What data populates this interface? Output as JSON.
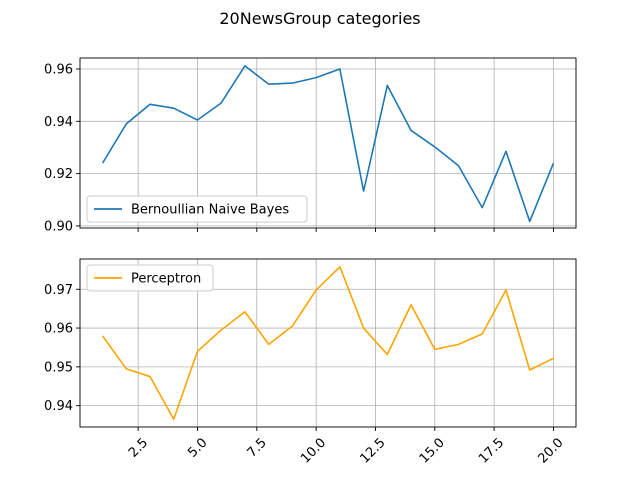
{
  "figure": {
    "title": "20NewsGroup categories"
  },
  "chart_data": [
    {
      "type": "line",
      "x": [
        1,
        2,
        3,
        4,
        5,
        6,
        7,
        8,
        9,
        10,
        11,
        12,
        13,
        14,
        15,
        16,
        17,
        18,
        19,
        20
      ],
      "series": [
        {
          "name": "Bernoullian Naive Bayes",
          "color": "#1f77b4",
          "values": [
            0.924,
            0.939,
            0.9465,
            0.945,
            0.9405,
            0.947,
            0.9612,
            0.9542,
            0.9546,
            0.9567,
            0.96,
            0.9133,
            0.9537,
            0.9365,
            0.9302,
            0.923,
            0.907,
            0.9285,
            0.9017,
            0.924
          ]
        }
      ],
      "xlim": [
        0.05,
        20.95
      ],
      "ylim": [
        0.8992,
        0.9642
      ],
      "yticks": [
        0.9,
        0.92,
        0.94,
        0.96
      ],
      "ytick_labels": [
        "0.90",
        "0.92",
        "0.94",
        "0.96"
      ],
      "xticks": [
        2.5,
        5.0,
        7.5,
        10.0,
        12.5,
        15.0,
        17.5,
        20.0
      ],
      "xtick_labels": [
        "",
        "",
        "",
        "",
        "",
        "",
        "",
        ""
      ],
      "grid": true,
      "legend_position": "lower-left"
    },
    {
      "type": "line",
      "x": [
        1,
        2,
        3,
        4,
        5,
        6,
        7,
        8,
        9,
        10,
        11,
        12,
        13,
        14,
        15,
        16,
        17,
        18,
        19,
        20
      ],
      "series": [
        {
          "name": "Perceptron",
          "color": "#ffa500",
          "values": [
            0.958,
            0.9495,
            0.9475,
            0.9365,
            0.954,
            0.9595,
            0.9642,
            0.9558,
            0.9605,
            0.9698,
            0.9758,
            0.96,
            0.9532,
            0.966,
            0.9545,
            0.9558,
            0.9585,
            0.9698,
            0.9492,
            0.9522
          ]
        }
      ],
      "xlim": [
        0.05,
        20.95
      ],
      "ylim": [
        0.9345,
        0.9778
      ],
      "yticks": [
        0.94,
        0.95,
        0.96,
        0.97
      ],
      "ytick_labels": [
        "0.94",
        "0.95",
        "0.96",
        "0.97"
      ],
      "xticks": [
        2.5,
        5.0,
        7.5,
        10.0,
        12.5,
        15.0,
        17.5,
        20.0
      ],
      "xtick_labels": [
        "2.5",
        "5.0",
        "7.5",
        "10.0",
        "12.5",
        "15.0",
        "17.5",
        "20.0"
      ],
      "grid": true,
      "legend_position": "upper-left"
    }
  ]
}
